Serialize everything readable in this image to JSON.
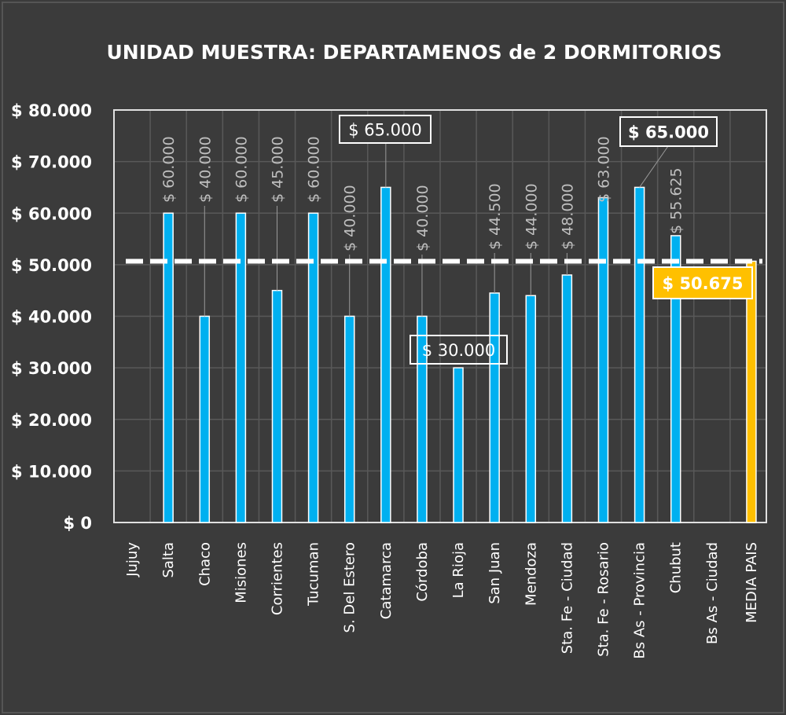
{
  "chart_data": {
    "type": "bar",
    "title": "UNIDAD MUESTRA:  DEPARTAMENOS de 2 DORMITORIOS",
    "xlabel": "",
    "ylabel": "",
    "ylim": [
      0,
      80000
    ],
    "yticks": [
      0,
      10000,
      20000,
      30000,
      40000,
      50000,
      60000,
      70000,
      80000
    ],
    "ytick_labels": [
      "$ 0",
      "$ 10.000",
      "$ 20.000",
      "$ 30.000",
      "$ 40.000",
      "$ 50.000",
      "$ 60.000",
      "$ 70.000",
      "$ 80.000"
    ],
    "grid": true,
    "categories": [
      "Jujuy",
      "Salta",
      "Chaco",
      "Misiones",
      "Corrientes",
      "Tucuman",
      "S. Del Estero",
      "Catamarca",
      "Córdoba",
      "La Rioja",
      "San Juan",
      "Mendoza",
      "Sta. Fe - Ciudad",
      "Sta. Fe - Rosario",
      "Bs As - Provincia",
      "Chubut",
      "Bs As - Ciudad",
      "MEDIA PAIS"
    ],
    "values": [
      null,
      60000,
      40000,
      60000,
      45000,
      60000,
      40000,
      65000,
      40000,
      30000,
      44500,
      44000,
      48000,
      63000,
      65000,
      55625,
      null,
      50675
    ],
    "data_labels": [
      "",
      "$ 60.000",
      "$ 40.000",
      "$ 60.000",
      "$ 45.000",
      "$ 60.000",
      "$ 40.000",
      "$ 65.000",
      "$ 40.000",
      "$ 30.000",
      "$ 44.500",
      "$ 44.000",
      "$ 48.000",
      "$ 63.000",
      "$ 65.000",
      "$ 55.625",
      "",
      "$ 50.675"
    ],
    "reference_line": {
      "value": 50675,
      "style": "dashed",
      "color": "#ffffff"
    },
    "colors": {
      "bar": "#00b0f0",
      "average_bar": "#ffc000",
      "background": "#3b3b3b",
      "text": "#ffffff",
      "label_muted": "#bfbfbf",
      "grid": "#595959"
    }
  }
}
